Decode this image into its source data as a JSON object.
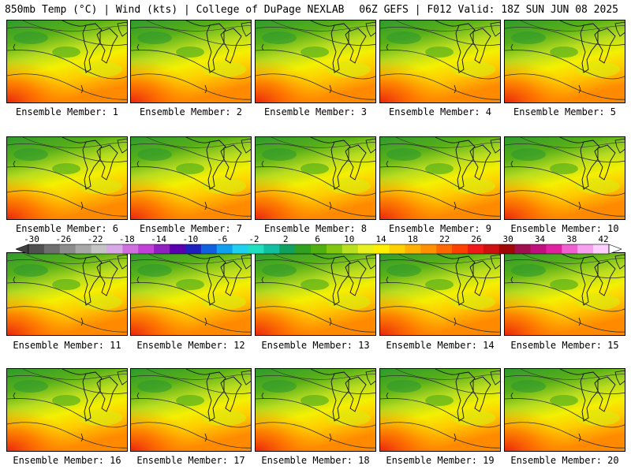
{
  "header": {
    "left": "850mb Temp (°C) | Wind (kts) | College of DuPage NEXLAB",
    "right": "06Z GEFS | F012 Valid: 18Z SUN JUN 08 2025"
  },
  "panels": [
    {
      "label": "Ensemble Member: 1"
    },
    {
      "label": "Ensemble Member: 2"
    },
    {
      "label": "Ensemble Member: 3"
    },
    {
      "label": "Ensemble Member: 4"
    },
    {
      "label": "Ensemble Member: 5"
    },
    {
      "label": "Ensemble Member: 6"
    },
    {
      "label": "Ensemble Member: 7"
    },
    {
      "label": "Ensemble Member: 8"
    },
    {
      "label": "Ensemble Member: 9"
    },
    {
      "label": "Ensemble Member: 10"
    },
    {
      "label": "Ensemble Member: 11"
    },
    {
      "label": "Ensemble Member: 12"
    },
    {
      "label": "Ensemble Member: 13"
    },
    {
      "label": "Ensemble Member: 14"
    },
    {
      "label": "Ensemble Member: 15"
    },
    {
      "label": "Ensemble Member: 16"
    },
    {
      "label": "Ensemble Member: 17"
    },
    {
      "label": "Ensemble Member: 18"
    },
    {
      "label": "Ensemble Member: 19"
    },
    {
      "label": "Ensemble Member: 20"
    }
  ],
  "colorbar": {
    "ticks": [
      "-30",
      "-26",
      "-22",
      "-18",
      "-14",
      "-10",
      "-6",
      "-2",
      "2",
      "6",
      "10",
      "14",
      "18",
      "22",
      "26",
      "30",
      "34",
      "38",
      "42"
    ],
    "colors": [
      "#505050",
      "#6e6e6e",
      "#8c8c8c",
      "#a8a8a8",
      "#c4c4c4",
      "#d8a8e8",
      "#d070e0",
      "#c040d8",
      "#9020c0",
      "#5a00b0",
      "#2020c0",
      "#1060e0",
      "#10a0f0",
      "#20d0f0",
      "#20e0c0",
      "#10c0a0",
      "#10a060",
      "#30a020",
      "#50b010",
      "#80c810",
      "#b8e020",
      "#e8f020",
      "#fff000",
      "#ffd000",
      "#ffb000",
      "#ff9000",
      "#ff6800",
      "#ff4000",
      "#f01818",
      "#d01010",
      "#a00808",
      "#a01050",
      "#c01080",
      "#e020a0",
      "#f060d0",
      "#f8a0f0",
      "#ffd0ff"
    ]
  }
}
